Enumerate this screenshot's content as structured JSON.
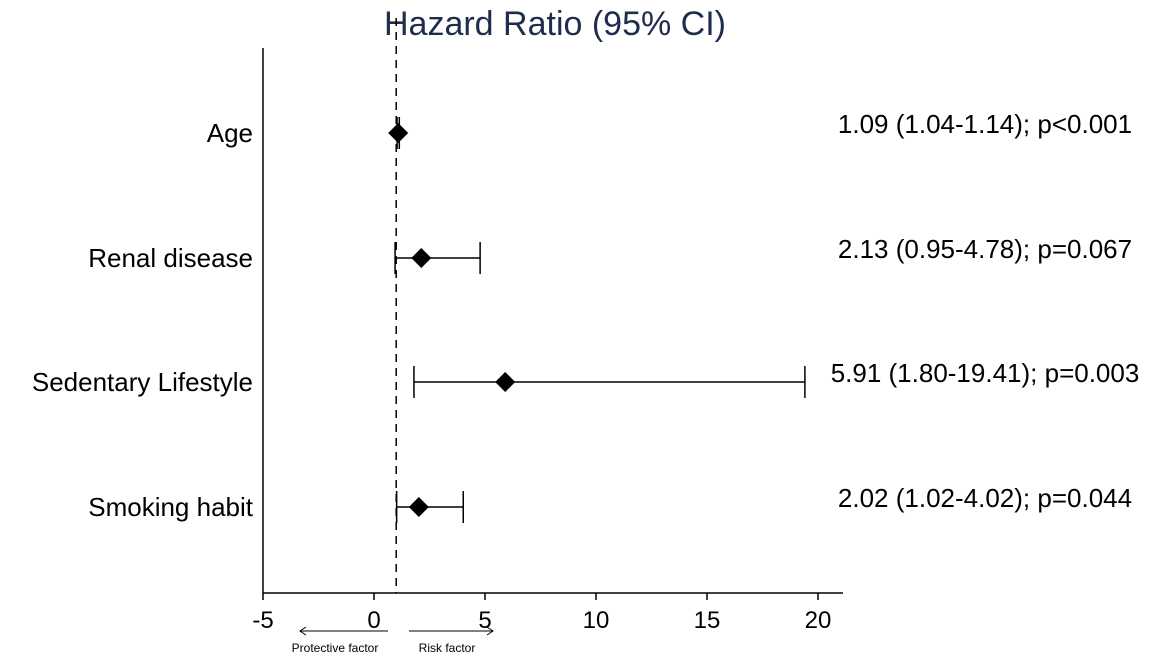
{
  "chart_data": {
    "type": "scatter",
    "subtype": "forest-plot",
    "title": "Hazard Ratio (95% CI)",
    "xlim": [
      -5,
      21
    ],
    "xticks": [
      -5,
      0,
      5,
      10,
      15,
      20
    ],
    "reference_line": 1,
    "rows": [
      {
        "label": "Age",
        "hr": 1.09,
        "lower": 1.04,
        "upper": 1.14,
        "stat": "1.09 (1.04-1.14); p<0.001"
      },
      {
        "label": "Renal disease",
        "hr": 2.13,
        "lower": 0.95,
        "upper": 4.78,
        "stat": "2.13 (0.95-4.78); p=0.067"
      },
      {
        "label": "Sedentary Lifestyle",
        "hr": 5.91,
        "lower": 1.8,
        "upper": 19.41,
        "stat": "5.91 (1.80-19.41); p=0.003"
      },
      {
        "label": "Smoking habit",
        "hr": 2.02,
        "lower": 1.02,
        "upper": 4.02,
        "stat": "2.02 (1.02-4.02); p=0.044"
      }
    ],
    "annotations": {
      "left_arrow": "Protective factor",
      "right_arrow": "Risk factor"
    },
    "colors": {
      "title": "#1f2d4d",
      "marks": "#000000"
    }
  }
}
